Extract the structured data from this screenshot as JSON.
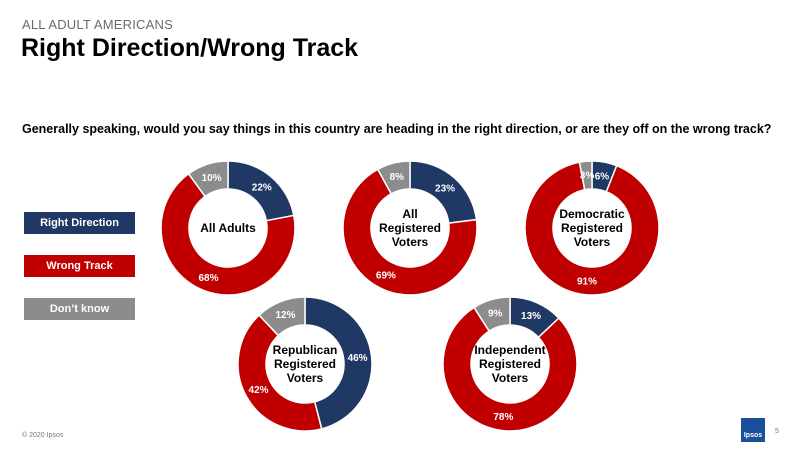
{
  "header": {
    "eyebrow": "ALL ADULT AMERICANS",
    "title": "Right Direction/Wrong Track"
  },
  "question": "Generally speaking, would you say things in this country are heading in the right direction, or are they off on the wrong track?",
  "legend": [
    {
      "label": "Right Direction",
      "color": "#1f3864"
    },
    {
      "label": "Wrong Track",
      "color": "#c00000"
    },
    {
      "label": "Don’t know",
      "color": "#8c8c8c"
    }
  ],
  "chart_data": {
    "type": "pie",
    "variant": "donut",
    "series_names": [
      "Right Direction",
      "Wrong Track",
      "Don’t know"
    ],
    "colors": [
      "#1f3864",
      "#c00000",
      "#8c8c8c"
    ],
    "charts": [
      {
        "label_lines": [
          "All Adults"
        ],
        "values": [
          22,
          68,
          10
        ]
      },
      {
        "label_lines": [
          "All",
          "Registered",
          "Voters"
        ],
        "values": [
          23,
          69,
          8
        ]
      },
      {
        "label_lines": [
          "Democratic",
          "Registered",
          "Voters"
        ],
        "values": [
          6,
          91,
          3
        ]
      },
      {
        "label_lines": [
          "Republican",
          "Registered",
          "Voters"
        ],
        "values": [
          46,
          42,
          12
        ]
      },
      {
        "label_lines": [
          "Independent",
          "Registered",
          "Voters"
        ],
        "values": [
          13,
          78,
          9
        ]
      }
    ]
  },
  "footer": {
    "copyright": "© 2020 Ipsos",
    "page_number": "5",
    "logo_text": "Ipsos"
  }
}
